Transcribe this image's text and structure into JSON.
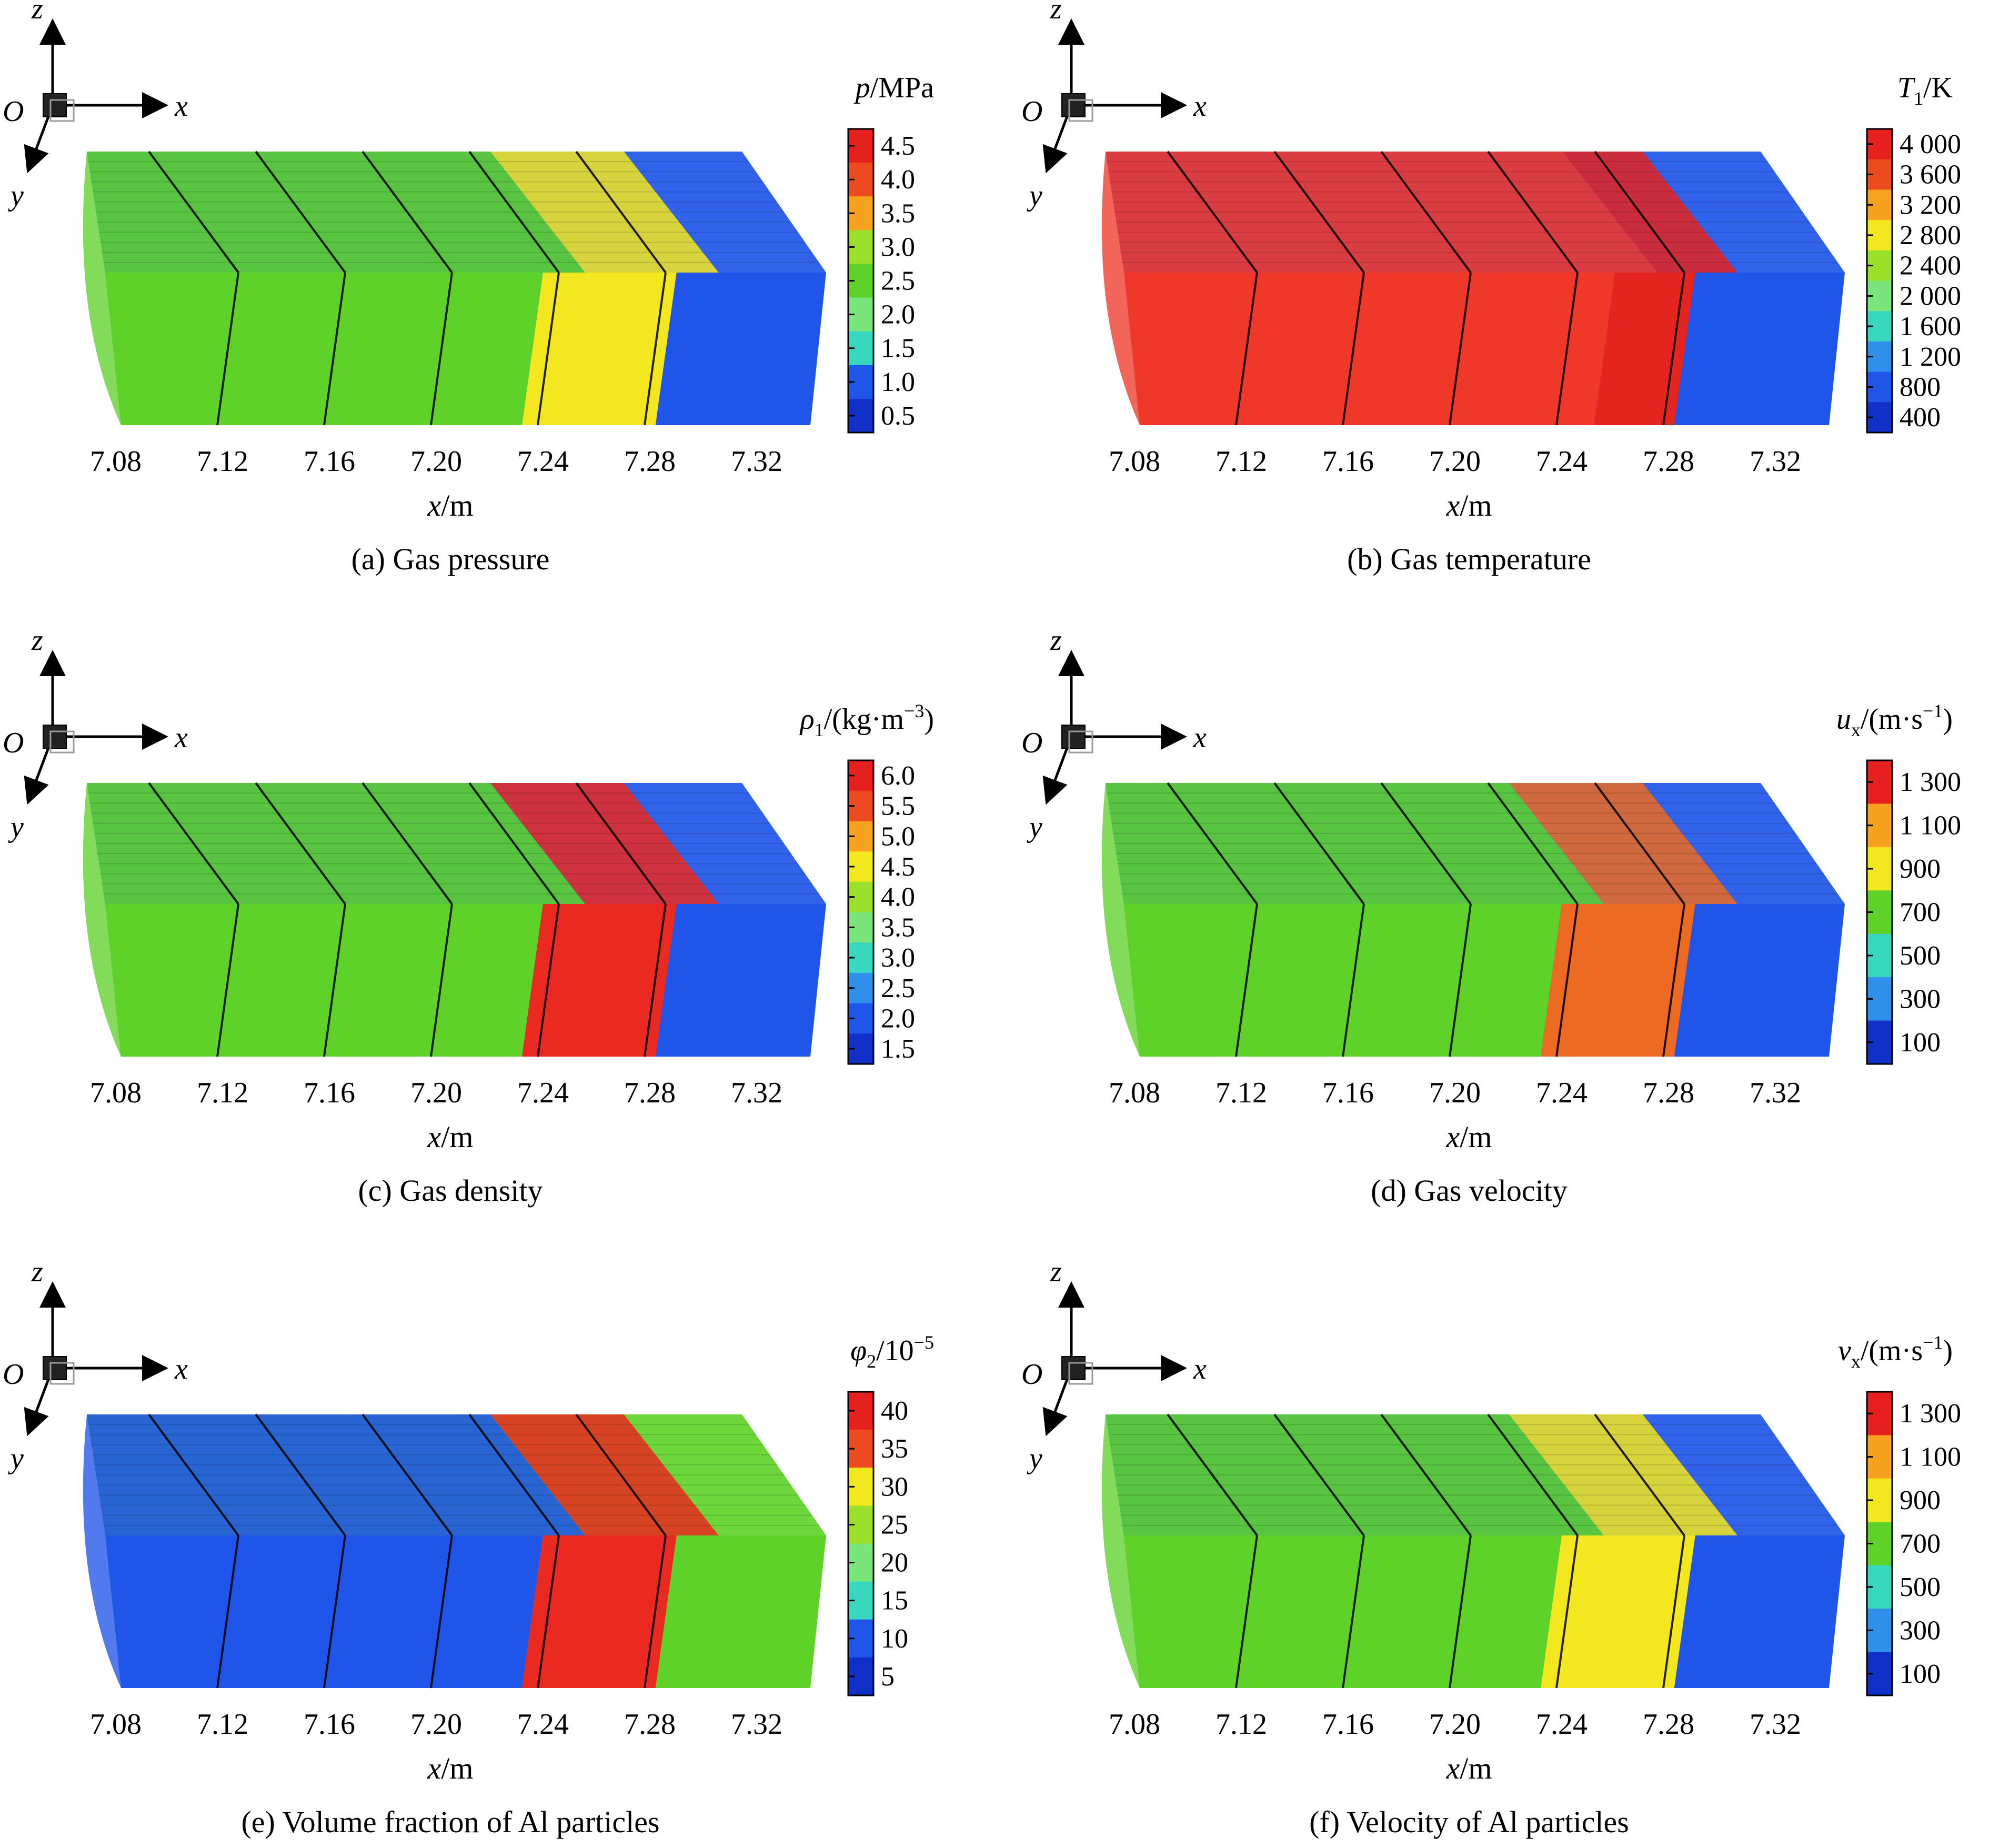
{
  "figure": {
    "x_axis_ticks": [
      "7.08",
      "7.12",
      "7.16",
      "7.20",
      "7.24",
      "7.28",
      "7.32"
    ],
    "x_axis_label": {
      "var": "x",
      "unit": "/m"
    },
    "orientation_triad": {
      "z": "z",
      "x": "x",
      "y": "y",
      "origin": "O"
    }
  },
  "chart_data": [
    {
      "type": "heatmap",
      "panel": "a",
      "caption": "(a) Gas pressure",
      "colorbar": {
        "var": "p",
        "sub": "",
        "sup": "",
        "unit": "/MPa",
        "ticks": [
          "4.5",
          "4.0",
          "3.5",
          "3.0",
          "2.5",
          "2.0",
          "1.5",
          "1.0",
          "0.5"
        ]
      },
      "colors": {
        "region_behind": "#5fd22a",
        "region_peak": "#f3e81f",
        "region_ahead": "#1f55e8"
      },
      "front_x": [
        7.24,
        7.29
      ]
    },
    {
      "type": "heatmap",
      "panel": "b",
      "caption": "(b) Gas temperature",
      "colorbar": {
        "var": "T",
        "sub": "1",
        "sup": "",
        "unit": "/K",
        "ticks": [
          "4 000",
          "3 600",
          "3 200",
          "2 800",
          "2 400",
          "2 000",
          "1 600",
          "1 200",
          "800",
          "400"
        ]
      },
      "colors": {
        "region_behind": "#f0382a",
        "region_peak": "#e4241e",
        "region_ahead": "#1f55e8"
      },
      "front_x": [
        7.26,
        7.29
      ]
    },
    {
      "type": "heatmap",
      "panel": "c",
      "caption": "(c) Gas density",
      "colorbar": {
        "var": "ρ",
        "sub": "1",
        "sup": "",
        "unit": "/(kg·m",
        "unit_sup": "−3",
        "unit_end": ")",
        "ticks": [
          "6.0",
          "5.5",
          "5.0",
          "4.5",
          "4.0",
          "3.5",
          "3.0",
          "2.5",
          "2.0",
          "1.5"
        ]
      },
      "colors": {
        "region_behind": "#5fd22a",
        "region_peak": "#ea2a20",
        "region_ahead": "#1f55e8"
      },
      "front_x": [
        7.24,
        7.29
      ]
    },
    {
      "type": "heatmap",
      "panel": "d",
      "caption": "(d) Gas velocity",
      "colorbar": {
        "var": "u",
        "sub": "x",
        "sup": "",
        "unit": "/(m·s",
        "unit_sup": "−1",
        "unit_end": ")",
        "ticks": [
          "1 300",
          "1 100",
          "900",
          "700",
          "500",
          "300",
          "100"
        ]
      },
      "colors": {
        "region_behind": "#5fd22a",
        "region_peak": "#ec6a22",
        "region_ahead": "#1f55e8"
      },
      "front_x": [
        7.24,
        7.29
      ]
    },
    {
      "type": "heatmap",
      "panel": "e",
      "caption": "(e) Volume fraction of Al particles",
      "colorbar": {
        "var": "φ",
        "sub": "2",
        "sup": "",
        "unit": "/10",
        "unit_sup": "−5",
        "unit_end": "",
        "ticks": [
          "40",
          "35",
          "30",
          "25",
          "20",
          "15",
          "10",
          "5"
        ]
      },
      "colors": {
        "region_behind": "#1f55e8",
        "region_peak": "#ea2a20",
        "region_ahead": "#5fd22a"
      },
      "front_x": [
        7.24,
        7.29
      ]
    },
    {
      "type": "heatmap",
      "panel": "f",
      "caption": "(f) Velocity of Al particles",
      "colorbar": {
        "var": "v",
        "sub": "x",
        "sup": "",
        "unit": "/(m·s",
        "unit_sup": "−1",
        "unit_end": ")",
        "ticks": [
          "1 300",
          "1 100",
          "900",
          "700",
          "500",
          "300",
          "100"
        ]
      },
      "colors": {
        "region_behind": "#5fd22a",
        "region_peak": "#f3e81f",
        "region_ahead": "#1f55e8"
      },
      "front_x": [
        7.24,
        7.29
      ]
    }
  ],
  "colormap": [
    "#1030c8",
    "#1f55e8",
    "#2f8fea",
    "#3ad7c0",
    "#7ae57a",
    "#5fd22a",
    "#9be02a",
    "#f3e81f",
    "#f6a21f",
    "#ec4a1f",
    "#e61f1f"
  ]
}
